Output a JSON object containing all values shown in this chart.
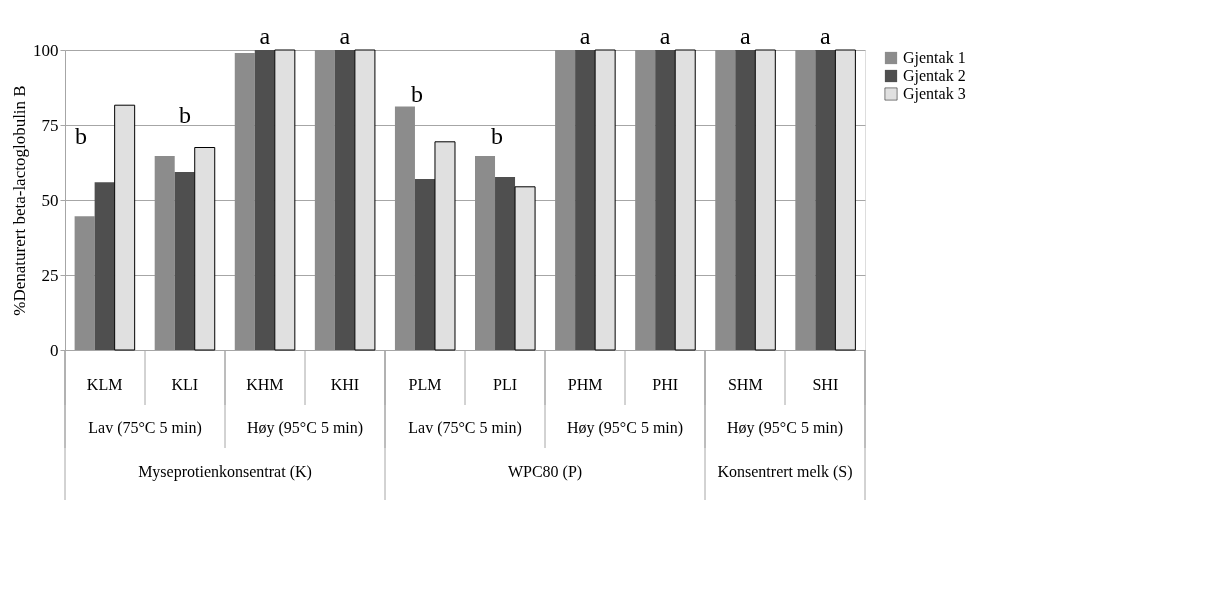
{
  "chart_data": {
    "type": "bar",
    "ylabel": "%Denaturert beta-lactoglobulin B",
    "categories": [
      "KLM",
      "KLI",
      "KHM",
      "KHI",
      "PLM",
      "PLI",
      "PHM",
      "PHI",
      "SHM",
      "SHI"
    ],
    "series": [
      {
        "name": "Gjentak 1",
        "color": "#8c8c8c",
        "values": [
          44.6,
          64.7,
          99.0,
          100,
          81.2,
          64.7,
          100,
          100,
          100,
          100
        ]
      },
      {
        "name": "Gjentak 2",
        "color": "#4f4f4f",
        "values": [
          55.9,
          59.3,
          100,
          100,
          57.0,
          57.7,
          100,
          100,
          100,
          100
        ]
      },
      {
        "name": "Gjentak 3",
        "color": "#e0e0e0",
        "values": [
          81.6,
          67.5,
          100,
          100,
          69.4,
          54.4,
          100,
          100,
          100,
          100
        ]
      }
    ],
    "ylim": [
      0,
      100
    ],
    "yticks": [
      0,
      25,
      50,
      75,
      100
    ],
    "grid": "y",
    "legend": "right",
    "annotations": [
      "b",
      "b",
      {
        "text": "a",
        "x": "KHM",
        "y": 100
      },
      {
        "text": "a",
        "x": "KHI",
        "y": 100
      },
      "b",
      "b",
      {
        "text": "a",
        "x": "PHM",
        "y": 100
      },
      {
        "text": "a",
        "x": "PHI",
        "y": 100
      },
      {
        "text": "a",
        "x": "SHM",
        "y": 100
      },
      {
        "text": "a",
        "x": "SHI",
        "y": 100
      },
      "Lav (75°C 5 min)",
      "Høy (95°C 5 min)",
      "Lav (75°C 5 min)",
      "Høy (95°C 5 min)",
      "Høy (95°C 5 min)",
      "Myseprotienkonsentrat (K)",
      "WPC80 (P)",
      "Konsentrert melk (S)"
    ]
  }
}
